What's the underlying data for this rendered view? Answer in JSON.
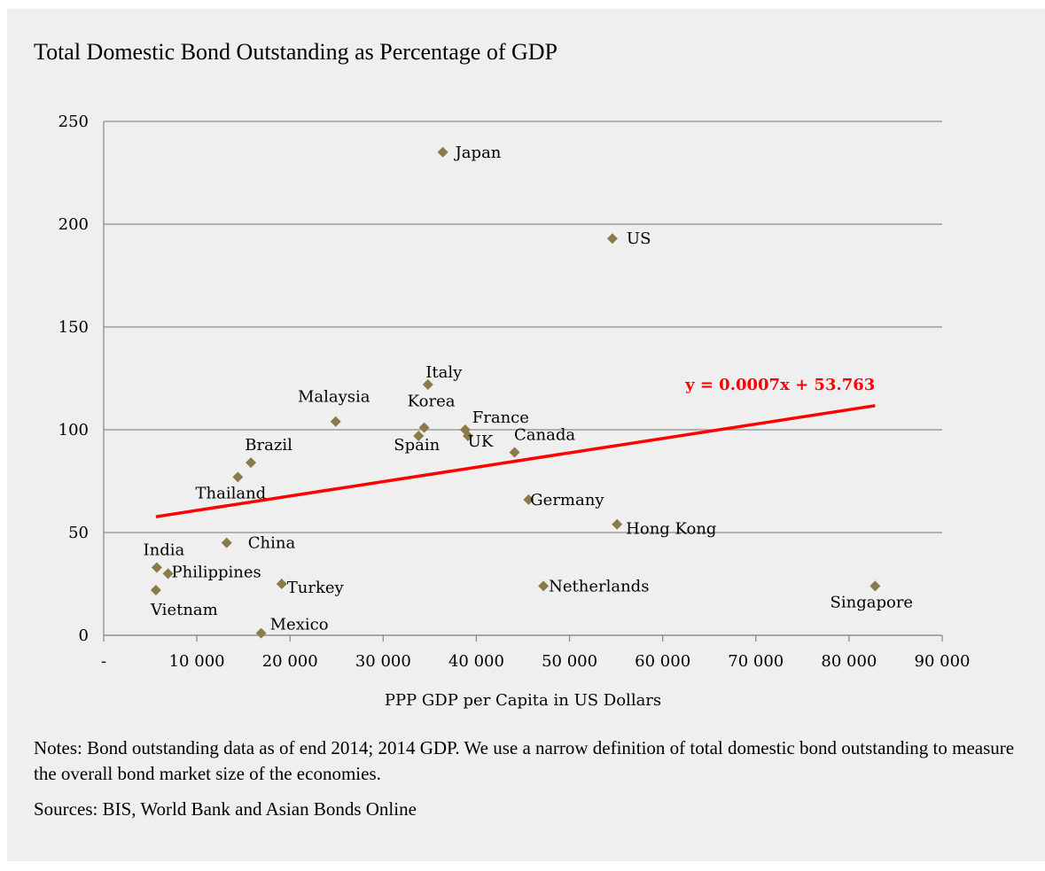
{
  "chart_data": {
    "type": "scatter",
    "title": "Total Domestic Bond Outstanding as Percentage of GDP",
    "xlabel": "PPP GDP per Capita in US Dollars",
    "ylabel": "",
    "xlim": [
      0,
      90000
    ],
    "ylim": [
      0,
      250
    ],
    "x_tick_labels": [
      "-",
      "10 000",
      "20 000",
      "30 000",
      "40 000",
      "50 000",
      "60 000",
      "70 000",
      "80 000",
      "90 000"
    ],
    "y_tick_labels": [
      "0",
      "50",
      "100",
      "150",
      "200",
      "250"
    ],
    "grid": "horizontal",
    "marker_color": "#8b7a4a",
    "points": [
      {
        "label": "Japan",
        "x": 36400,
        "y": 235
      },
      {
        "label": "US",
        "x": 54600,
        "y": 193
      },
      {
        "label": "Italy",
        "x": 34800,
        "y": 122
      },
      {
        "label": "Malaysia",
        "x": 24900,
        "y": 104
      },
      {
        "label": "Korea",
        "x": 34400,
        "y": 101
      },
      {
        "label": "Spain",
        "x": 33800,
        "y": 97
      },
      {
        "label": "France",
        "x": 38800,
        "y": 100
      },
      {
        "label": "UK",
        "x": 39100,
        "y": 97
      },
      {
        "label": "Canada",
        "x": 44100,
        "y": 89
      },
      {
        "label": "Brazil",
        "x": 15800,
        "y": 84
      },
      {
        "label": "Thailand",
        "x": 14400,
        "y": 77
      },
      {
        "label": "Germany",
        "x": 45600,
        "y": 66
      },
      {
        "label": "Hong Kong",
        "x": 55100,
        "y": 54
      },
      {
        "label": "China",
        "x": 13200,
        "y": 45
      },
      {
        "label": "India",
        "x": 5700,
        "y": 33
      },
      {
        "label": "Philippines",
        "x": 6900,
        "y": 30
      },
      {
        "label": "Turkey",
        "x": 19100,
        "y": 25
      },
      {
        "label": "Netherlands",
        "x": 47200,
        "y": 24
      },
      {
        "label": "Singapore",
        "x": 82800,
        "y": 24
      },
      {
        "label": "Vietnam",
        "x": 5600,
        "y": 22
      },
      {
        "label": "Mexico",
        "x": 16900,
        "y": 1
      }
    ],
    "trendline": {
      "label": "y = 0.0007x + 53.763",
      "color": "#ff0000",
      "slope": 0.0007,
      "intercept": 53.763,
      "x_range": [
        5600,
        82800
      ]
    }
  },
  "notes": "Notes: Bond outstanding data as of end 2014; 2014 GDP. We use a narrow definition of total domestic bond outstanding to measure the overall bond market size of the economies.",
  "sources": "Sources: BIS, World Bank and Asian Bonds Online"
}
